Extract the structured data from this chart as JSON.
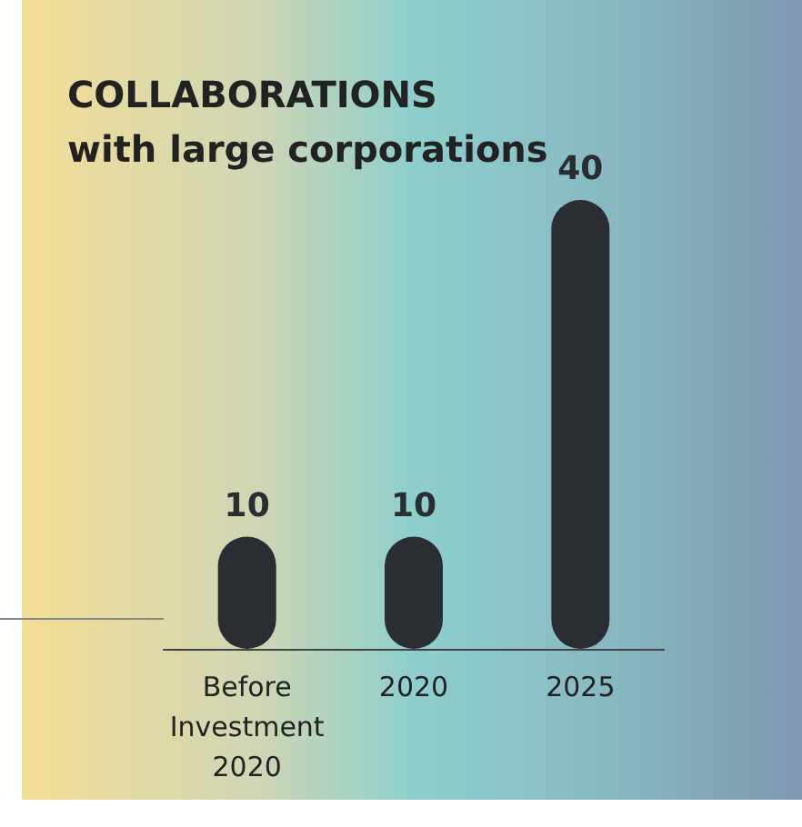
{
  "chart_data": {
    "type": "bar",
    "title": "COLLABORATIONS\nwith large corporations",
    "categories": [
      "Before\nInvestment\n2020",
      "2020",
      "2025"
    ],
    "values": [
      10,
      10,
      40
    ],
    "color": "#2a2d31",
    "data_labels": true,
    "grid": false
  }
}
